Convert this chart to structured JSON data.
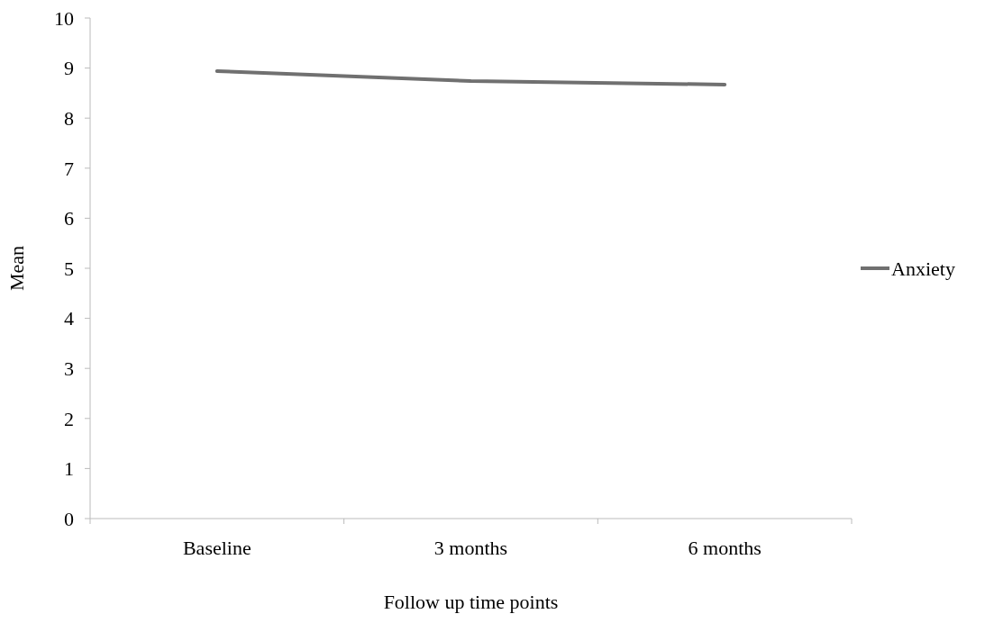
{
  "chart_data": {
    "type": "line",
    "xlabel": "Follow up time points",
    "ylabel": "Mean",
    "categories": [
      "Baseline",
      "3 months",
      "6 months"
    ],
    "series": [
      {
        "name": "Anxiety",
        "color": "#707070",
        "values": [
          8.94,
          8.74,
          8.67
        ]
      }
    ],
    "ylim": [
      0,
      10
    ],
    "yticks": [
      0,
      1,
      2,
      3,
      4,
      5,
      6,
      7,
      8,
      9,
      10
    ],
    "grid": false,
    "legend": "right",
    "marker": "none",
    "line_style": "solid"
  }
}
